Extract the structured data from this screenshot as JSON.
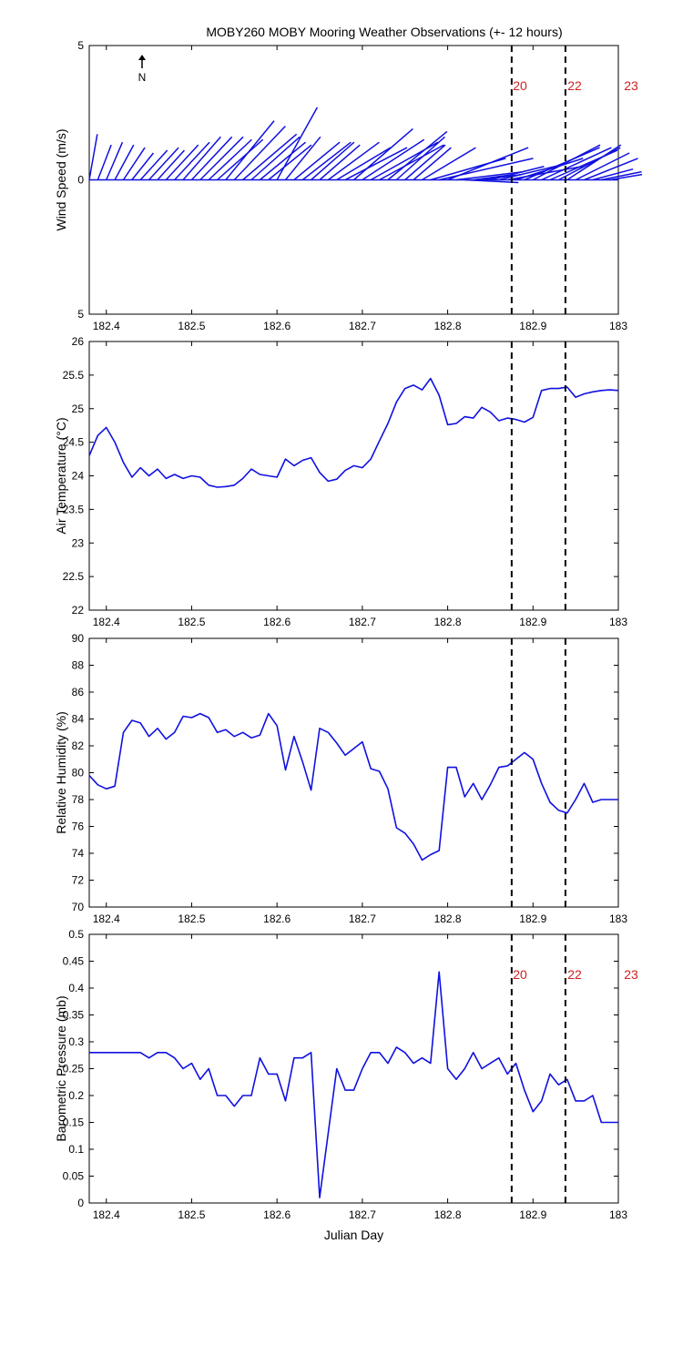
{
  "title": "MOBY260 MOBY Mooring Weather Observations (+- 12 hours)",
  "north_label": "N",
  "chart_data": [
    {
      "type": "vector",
      "ylabel": "Wind Speed (m/s)",
      "xlabel": "",
      "xlim": [
        182.38,
        183.0
      ],
      "ylim": [
        -5,
        5
      ],
      "y_ticks": [
        5,
        0,
        5
      ],
      "x_ticks": [
        "182.4",
        "182.5",
        "182.6",
        "182.7",
        "182.8",
        "182.9",
        "183"
      ],
      "vlines": [
        182.875,
        182.938
      ],
      "vline_labels": [
        "20",
        "22",
        "23"
      ],
      "x": [
        182.38,
        182.39,
        182.4,
        182.41,
        182.42,
        182.43,
        182.44,
        182.45,
        182.46,
        182.47,
        182.48,
        182.49,
        182.5,
        182.51,
        182.52,
        182.53,
        182.54,
        182.55,
        182.56,
        182.57,
        182.58,
        182.59,
        182.6,
        182.61,
        182.62,
        182.63,
        182.64,
        182.65,
        182.66,
        182.67,
        182.68,
        182.69,
        182.7,
        182.71,
        182.72,
        182.73,
        182.74,
        182.75,
        182.76,
        182.77,
        182.78,
        182.79,
        182.8,
        182.81,
        182.82,
        182.83,
        182.84,
        182.85,
        182.86,
        182.87,
        182.88,
        182.89,
        182.9,
        182.91,
        182.92,
        182.93,
        182.94,
        182.95,
        182.96,
        182.97,
        182.98,
        182.99
      ],
      "u": [
        0.3,
        0.5,
        0.6,
        0.7,
        0.8,
        0.8,
        1.0,
        1.1,
        1.0,
        1.2,
        1.3,
        1.4,
        1.5,
        1.6,
        1.6,
        1.7,
        1.8,
        1.9,
        2.0,
        1.8,
        1.7,
        1.6,
        1.5,
        1.3,
        1.7,
        1.8,
        1.6,
        1.5,
        1.9,
        2.0,
        2.3,
        2.2,
        2.3,
        2.5,
        2.4,
        2.2,
        1.8,
        1.5,
        1.4,
        2.0,
        2.8,
        3.5,
        3.0,
        2.5,
        2.0,
        1.5,
        1.5,
        2.0,
        2.5,
        2.8,
        2.5,
        2.8,
        2.5,
        2.6,
        2.5,
        2.3,
        2.0,
        2.0,
        2.0,
        1.5,
        1.5,
        1.2
      ],
      "v": [
        1.7,
        1.3,
        1.4,
        1.3,
        1.2,
        1.0,
        1.1,
        1.2,
        1.1,
        1.3,
        1.4,
        1.6,
        1.6,
        1.6,
        1.5,
        1.5,
        2.2,
        2.0,
        1.7,
        1.6,
        1.4,
        1.3,
        2.7,
        1.6,
        1.4,
        1.4,
        1.4,
        1.3,
        1.4,
        1.2,
        1.2,
        1.9,
        1.5,
        1.4,
        1.3,
        1.8,
        1.6,
        1.3,
        1.2,
        1.2,
        0.8,
        0.8,
        1.2,
        0.3,
        -0.1,
        0.2,
        0.2,
        0.5,
        0.6,
        0.5,
        0.8,
        1.2,
        1.3,
        1.2,
        1.1,
        1.2,
        1.3,
        1.0,
        0.8,
        0.4,
        0.3,
        0.2
      ]
    },
    {
      "type": "line",
      "ylabel": "Air Temperature (°C)",
      "xlabel": "",
      "xlim": [
        182.38,
        183.0
      ],
      "ylim": [
        22,
        26
      ],
      "y_ticks": [
        "22",
        "22.5",
        "23",
        "23.5",
        "24",
        "24.5",
        "25",
        "25.5",
        "26"
      ],
      "x_ticks": [
        "182.4",
        "182.5",
        "182.6",
        "182.7",
        "182.8",
        "182.9",
        "183"
      ],
      "vlines": [
        182.875,
        182.938
      ],
      "x": [
        182.38,
        182.39,
        182.4,
        182.41,
        182.42,
        182.43,
        182.44,
        182.45,
        182.46,
        182.47,
        182.48,
        182.49,
        182.5,
        182.51,
        182.52,
        182.53,
        182.54,
        182.55,
        182.56,
        182.57,
        182.58,
        182.59,
        182.6,
        182.61,
        182.62,
        182.63,
        182.64,
        182.65,
        182.66,
        182.67,
        182.68,
        182.69,
        182.7,
        182.71,
        182.72,
        182.73,
        182.74,
        182.75,
        182.76,
        182.77,
        182.78,
        182.79,
        182.8,
        182.81,
        182.82,
        182.83,
        182.84,
        182.85,
        182.86,
        182.87,
        182.88,
        182.89,
        182.9,
        182.91,
        182.92,
        182.93,
        182.94,
        182.95,
        182.96,
        182.97,
        182.98,
        182.99,
        183.0
      ],
      "y": [
        24.3,
        24.6,
        24.72,
        24.5,
        24.2,
        23.98,
        24.12,
        24.0,
        24.1,
        23.96,
        24.02,
        23.96,
        24.0,
        23.98,
        23.86,
        23.83,
        23.84,
        23.86,
        23.96,
        24.1,
        24.02,
        24.0,
        23.98,
        24.25,
        24.15,
        24.23,
        24.27,
        24.05,
        23.92,
        23.95,
        24.08,
        24.15,
        24.12,
        24.25,
        24.52,
        24.78,
        25.1,
        25.3,
        25.35,
        25.28,
        25.45,
        25.2,
        24.76,
        24.78,
        24.88,
        24.86,
        25.02,
        24.95,
        24.82,
        24.86,
        24.84,
        24.8,
        24.87,
        25.27,
        25.3,
        25.3,
        25.32,
        25.17,
        25.22,
        25.25,
        25.27,
        25.28,
        25.27
      ]
    },
    {
      "type": "line",
      "ylabel": "Relative Humidity (%)",
      "xlabel": "",
      "xlim": [
        182.38,
        183.0
      ],
      "ylim": [
        70,
        90
      ],
      "y_ticks": [
        "70",
        "72",
        "74",
        "76",
        "78",
        "80",
        "82",
        "84",
        "86",
        "88",
        "90"
      ],
      "x_ticks": [
        "182.4",
        "182.5",
        "182.6",
        "182.7",
        "182.8",
        "182.9",
        "183"
      ],
      "vlines": [
        182.875,
        182.938
      ],
      "x": [
        182.38,
        182.39,
        182.4,
        182.41,
        182.42,
        182.43,
        182.44,
        182.45,
        182.46,
        182.47,
        182.48,
        182.49,
        182.5,
        182.51,
        182.52,
        182.53,
        182.54,
        182.55,
        182.56,
        182.57,
        182.58,
        182.59,
        182.6,
        182.61,
        182.62,
        182.63,
        182.64,
        182.65,
        182.66,
        182.67,
        182.68,
        182.69,
        182.7,
        182.71,
        182.72,
        182.73,
        182.74,
        182.75,
        182.76,
        182.77,
        182.78,
        182.79,
        182.8,
        182.81,
        182.82,
        182.83,
        182.84,
        182.85,
        182.86,
        182.87,
        182.88,
        182.89,
        182.9,
        182.91,
        182.92,
        182.93,
        182.94,
        182.95,
        182.96,
        182.97,
        182.98,
        182.99,
        183.0
      ],
      "y": [
        79.8,
        79.1,
        78.8,
        79.0,
        83.0,
        83.9,
        83.7,
        82.7,
        83.3,
        82.5,
        83.0,
        84.2,
        84.1,
        84.4,
        84.1,
        83.0,
        83.2,
        82.7,
        83.0,
        82.6,
        82.8,
        84.4,
        83.5,
        80.2,
        82.7,
        80.8,
        78.7,
        83.3,
        83.0,
        82.2,
        81.3,
        81.8,
        82.3,
        80.3,
        80.1,
        78.8,
        75.9,
        75.5,
        74.7,
        73.5,
        73.9,
        74.2,
        80.4,
        80.4,
        78.2,
        79.2,
        78.0,
        79.1,
        80.4,
        80.5,
        81.0,
        81.5,
        81.0,
        79.2,
        77.8,
        77.2,
        77.0,
        78.0,
        79.2,
        77.8,
        78.0,
        78.0,
        78.0
      ]
    },
    {
      "type": "line",
      "ylabel": "Barometric Pressure (mb)",
      "xlabel": "Julian Day",
      "xlim": [
        182.38,
        183.0
      ],
      "ylim": [
        0,
        0.5
      ],
      "y_ticks": [
        "0",
        "0.05",
        "0.1",
        "0.15",
        "0.2",
        "0.25",
        "0.3",
        "0.35",
        "0.4",
        "0.45",
        "0.5"
      ],
      "x_ticks": [
        "182.4",
        "182.5",
        "182.6",
        "182.7",
        "182.8",
        "182.9",
        "183"
      ],
      "vlines": [
        182.875,
        182.938
      ],
      "vline_labels": [
        "20",
        "22",
        "23"
      ],
      "x": [
        182.38,
        182.39,
        182.4,
        182.41,
        182.42,
        182.43,
        182.44,
        182.45,
        182.46,
        182.47,
        182.48,
        182.49,
        182.5,
        182.51,
        182.52,
        182.53,
        182.54,
        182.55,
        182.56,
        182.57,
        182.58,
        182.59,
        182.6,
        182.61,
        182.62,
        182.63,
        182.64,
        182.65,
        182.66,
        182.67,
        182.68,
        182.69,
        182.7,
        182.71,
        182.72,
        182.73,
        182.74,
        182.75,
        182.76,
        182.77,
        182.78,
        182.79,
        182.8,
        182.81,
        182.82,
        182.83,
        182.84,
        182.85,
        182.86,
        182.87,
        182.88,
        182.89,
        182.9,
        182.91,
        182.92,
        182.93,
        182.94,
        182.95,
        182.96,
        182.97,
        182.98,
        182.99,
        183.0
      ],
      "y": [
        0.28,
        0.28,
        0.28,
        0.28,
        0.28,
        0.28,
        0.28,
        0.27,
        0.28,
        0.28,
        0.27,
        0.25,
        0.26,
        0.23,
        0.25,
        0.2,
        0.2,
        0.18,
        0.2,
        0.2,
        0.27,
        0.24,
        0.24,
        0.19,
        0.27,
        0.27,
        0.28,
        0.01,
        0.13,
        0.25,
        0.21,
        0.21,
        0.25,
        0.28,
        0.28,
        0.26,
        0.29,
        0.28,
        0.26,
        0.27,
        0.26,
        0.43,
        0.25,
        0.23,
        0.25,
        0.28,
        0.25,
        0.26,
        0.27,
        0.24,
        0.26,
        0.21,
        0.17,
        0.19,
        0.24,
        0.22,
        0.23,
        0.19,
        0.19,
        0.2,
        0.15,
        0.15,
        0.15
      ]
    }
  ]
}
